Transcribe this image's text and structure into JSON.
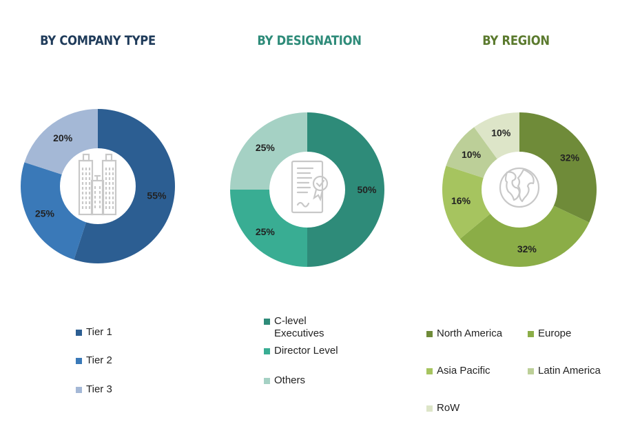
{
  "chart_data": [
    {
      "type": "pie",
      "title": "BY COMPANY TYPE",
      "title_color": "#1f3b5a",
      "categories": [
        "Tier 1",
        "Tier 2",
        "Tier 3"
      ],
      "values": [
        55,
        25,
        20
      ],
      "labels": [
        "55%",
        "25%",
        "20%"
      ],
      "colors": [
        "#2c5e92",
        "#3a79b8",
        "#a4b8d6"
      ],
      "donut": true,
      "center_icon": "buildings-icon",
      "legend_placement": "bottom"
    },
    {
      "type": "pie",
      "title": "BY DESIGNATION",
      "title_color": "#2e8b79",
      "categories": [
        "C-level Executives",
        "Director Level",
        "Others"
      ],
      "values": [
        50,
        25,
        25
      ],
      "labels": [
        "50%",
        "25%",
        "25%"
      ],
      "colors": [
        "#2e8b79",
        "#39ad93",
        "#a5d1c4"
      ],
      "donut": true,
      "center_icon": "certificate-icon",
      "legend_placement": "bottom"
    },
    {
      "type": "pie",
      "title": "BY REGION",
      "title_color": "#5b7a2e",
      "categories": [
        "North America",
        "Europe",
        "Asia Pacific",
        "Latin America",
        "RoW"
      ],
      "values": [
        32,
        32,
        16,
        10,
        10
      ],
      "labels": [
        "32%",
        "32%",
        "16%",
        "10%",
        "10%"
      ],
      "colors": [
        "#6f8b39",
        "#8bad47",
        "#a6c45f",
        "#bccf98",
        "#dde5c8"
      ],
      "donut": true,
      "center_icon": "globe-icon",
      "legend_placement": "bottom"
    }
  ]
}
